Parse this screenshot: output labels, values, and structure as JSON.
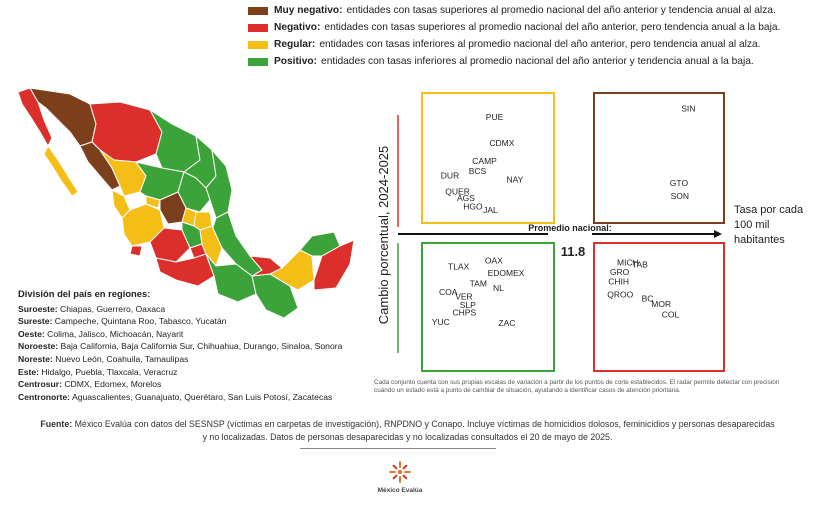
{
  "colors": {
    "muy_negativo": "#7b3f1c",
    "negativo": "#dc2f2b",
    "regular": "#f5be17",
    "positivo": "#3ca33a"
  },
  "legend": [
    {
      "key": "muy_negativo",
      "label": "Muy negativo:",
      "text": "entidades con tasas superiores al promedio nacional del año anterior y tendencia anual al alza."
    },
    {
      "key": "negativo",
      "label": "Negativo:",
      "text": "entidades con tasas superiores al promedio nacional del año anterior, pero tendencia anual a la baja."
    },
    {
      "key": "regular",
      "label": "Regular:",
      "text": "entidades con tasas inferiores al promedio nacional del año anterior, pero tendencia anual al alza."
    },
    {
      "key": "positivo",
      "label": "Positivo:",
      "text": "entidades con tasas inferiores al promedio nacional del año anterior y tendencia anual a la baja."
    }
  ],
  "regions": {
    "title": "División del país en regiones:",
    "items": [
      {
        "name": "Suroeste:",
        "states": "Chiapas, Guerrero, Oaxaca"
      },
      {
        "name": "Sureste:",
        "states": "Campeche, Quintana Roo, Tabasco, Yucatán"
      },
      {
        "name": "Oeste:",
        "states": "Colima, Jalisco, Michoacán, Nayarit"
      },
      {
        "name": "Noroeste:",
        "states": "Baja California, Baja California Sur, Chihuahua, Durango, Sinaloa, Sonora"
      },
      {
        "name": "Noreste:",
        "states": "Nuevo León, Coahuila, Tamaulipas"
      },
      {
        "name": "Este:",
        "states": "Hidalgo, Puebla, Tlaxcala,  Veracruz"
      },
      {
        "name": "Centrosur:",
        "states": "CDMX, Edomex, Morelos"
      },
      {
        "name": "Centronorte:",
        "states": "Aguascalientes, Guanajuato, Querétaro, San Luis Potosí, Zacatecas"
      }
    ]
  },
  "chart_data": {
    "type": "scatter",
    "title": "",
    "ylabel": "Cambio porcentual, 2024-2025",
    "xlabel": "Tasa por cada 100 mil habitantes",
    "reference": {
      "label": "Promedio nacional:",
      "value": "11.8"
    },
    "quadrants": [
      {
        "position": "top-left",
        "category": "regular",
        "points": [
          {
            "label": "PUE",
            "x": 0.62,
            "y": 0.88
          },
          {
            "label": "CDMX",
            "x": 0.66,
            "y": 0.64
          },
          {
            "label": "CAMP",
            "x": 0.47,
            "y": 0.47
          },
          {
            "label": "BCS",
            "x": 0.43,
            "y": 0.38
          },
          {
            "label": "NAY",
            "x": 0.85,
            "y": 0.3
          },
          {
            "label": "DUR",
            "x": 0.12,
            "y": 0.34
          },
          {
            "label": "QUER",
            "x": 0.17,
            "y": 0.19
          },
          {
            "label": "AGS",
            "x": 0.3,
            "y": 0.13
          },
          {
            "label": "HGO",
            "x": 0.37,
            "y": 0.05
          },
          {
            "label": "JAL",
            "x": 0.59,
            "y": 0.02
          }
        ]
      },
      {
        "position": "top-right",
        "category": "muy_negativo",
        "points": [
          {
            "label": "SIN",
            "x": 0.9,
            "y": 0.96
          },
          {
            "label": "GTO",
            "x": 0.77,
            "y": 0.27
          },
          {
            "label": "SON",
            "x": 0.78,
            "y": 0.15
          }
        ]
      },
      {
        "position": "bottom-left",
        "category": "positivo",
        "points": [
          {
            "label": "OAX",
            "x": 0.61,
            "y": 0.94
          },
          {
            "label": "TLAX",
            "x": 0.2,
            "y": 0.88
          },
          {
            "label": "EDOMEX",
            "x": 0.64,
            "y": 0.82
          },
          {
            "label": "TAM",
            "x": 0.44,
            "y": 0.72
          },
          {
            "label": "NL",
            "x": 0.7,
            "y": 0.68
          },
          {
            "label": "COA",
            "x": 0.1,
            "y": 0.64
          },
          {
            "label": "VER",
            "x": 0.28,
            "y": 0.6
          },
          {
            "label": "SLP",
            "x": 0.33,
            "y": 0.52
          },
          {
            "label": "CHPS",
            "x": 0.25,
            "y": 0.45
          },
          {
            "label": "YUC",
            "x": 0.02,
            "y": 0.36
          },
          {
            "label": "ZAC",
            "x": 0.76,
            "y": 0.35
          }
        ]
      },
      {
        "position": "bottom-right",
        "category": "negativo",
        "points": [
          {
            "label": "MICH",
            "x": 0.17,
            "y": 0.92
          },
          {
            "label": "TAB",
            "x": 0.34,
            "y": 0.9
          },
          {
            "label": "GRO",
            "x": 0.09,
            "y": 0.83
          },
          {
            "label": "CHIH",
            "x": 0.07,
            "y": 0.74
          },
          {
            "label": "QROO",
            "x": 0.06,
            "y": 0.62
          },
          {
            "label": "BC",
            "x": 0.45,
            "y": 0.58
          },
          {
            "label": "MOR",
            "x": 0.56,
            "y": 0.53
          },
          {
            "label": "COL",
            "x": 0.68,
            "y": 0.43
          }
        ]
      }
    ]
  },
  "footnote": "Cada conjunto cuenta con sus propias escalas de variación a partir de los puntos de corte establecidos. El radar permite detectar con precisión cuándo un estado está a punto de cambiar de situación, ayudando a identificar casos de atención prioritaria.",
  "source": {
    "label": "Fuente:",
    "text": "México Evalúa con datos del SESNSP (víctimas en carpetas de investigación), RNPDNO y Conapo. Incluye víctimas de homicidios dolosos, feminicidios y personas desaparecidas y no localizadas. Datos de personas desaparecidas y no localizadas consultados el 20 de mayo de 2025."
  },
  "logo_text": "México Evalúa"
}
